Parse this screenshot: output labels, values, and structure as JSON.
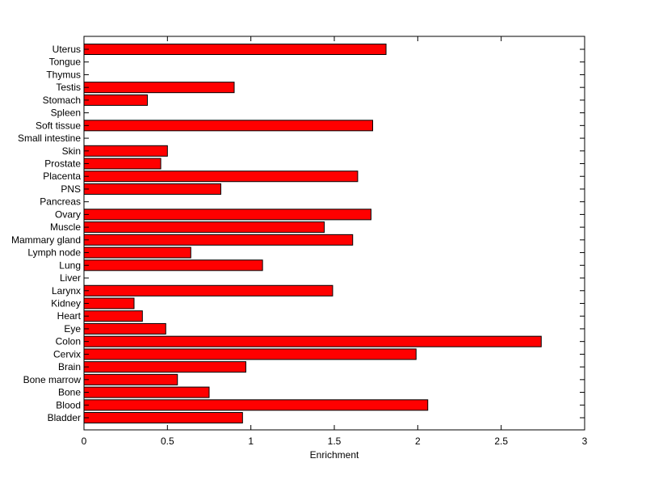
{
  "chart_data": {
    "type": "bar",
    "orientation": "horizontal",
    "categories": [
      "Uterus",
      "Tongue",
      "Thymus",
      "Testis",
      "Stomach",
      "Spleen",
      "Soft tissue",
      "Small intestine",
      "Skin",
      "Prostate",
      "Placenta",
      "PNS",
      "Pancreas",
      "Ovary",
      "Muscle",
      "Mammary gland",
      "Lymph node",
      "Lung",
      "Liver",
      "Larynx",
      "Kidney",
      "Heart",
      "Eye",
      "Colon",
      "Cervix",
      "Brain",
      "Bone marrow",
      "Bone",
      "Blood",
      "Bladder"
    ],
    "values": [
      1.81,
      0,
      0,
      0.9,
      0.38,
      0,
      1.73,
      0,
      0.5,
      0.46,
      1.64,
      0.82,
      0,
      1.72,
      1.44,
      1.61,
      0.64,
      1.07,
      0,
      1.49,
      0.3,
      0.35,
      0.49,
      2.74,
      1.99,
      0.97,
      0.56,
      0.75,
      2.06,
      0.95
    ],
    "xlabel": "Enrichment",
    "ylabel": "",
    "xlim": [
      0,
      3
    ],
    "xticks": [
      0,
      0.5,
      1,
      1.5,
      2,
      2.5,
      3
    ],
    "xtick_labels": [
      "0",
      "0.5",
      "1",
      "1.5",
      "2",
      "2.5",
      "3"
    ],
    "grid": false,
    "bar_color": "#ff0000",
    "edge_color": "#000000"
  }
}
